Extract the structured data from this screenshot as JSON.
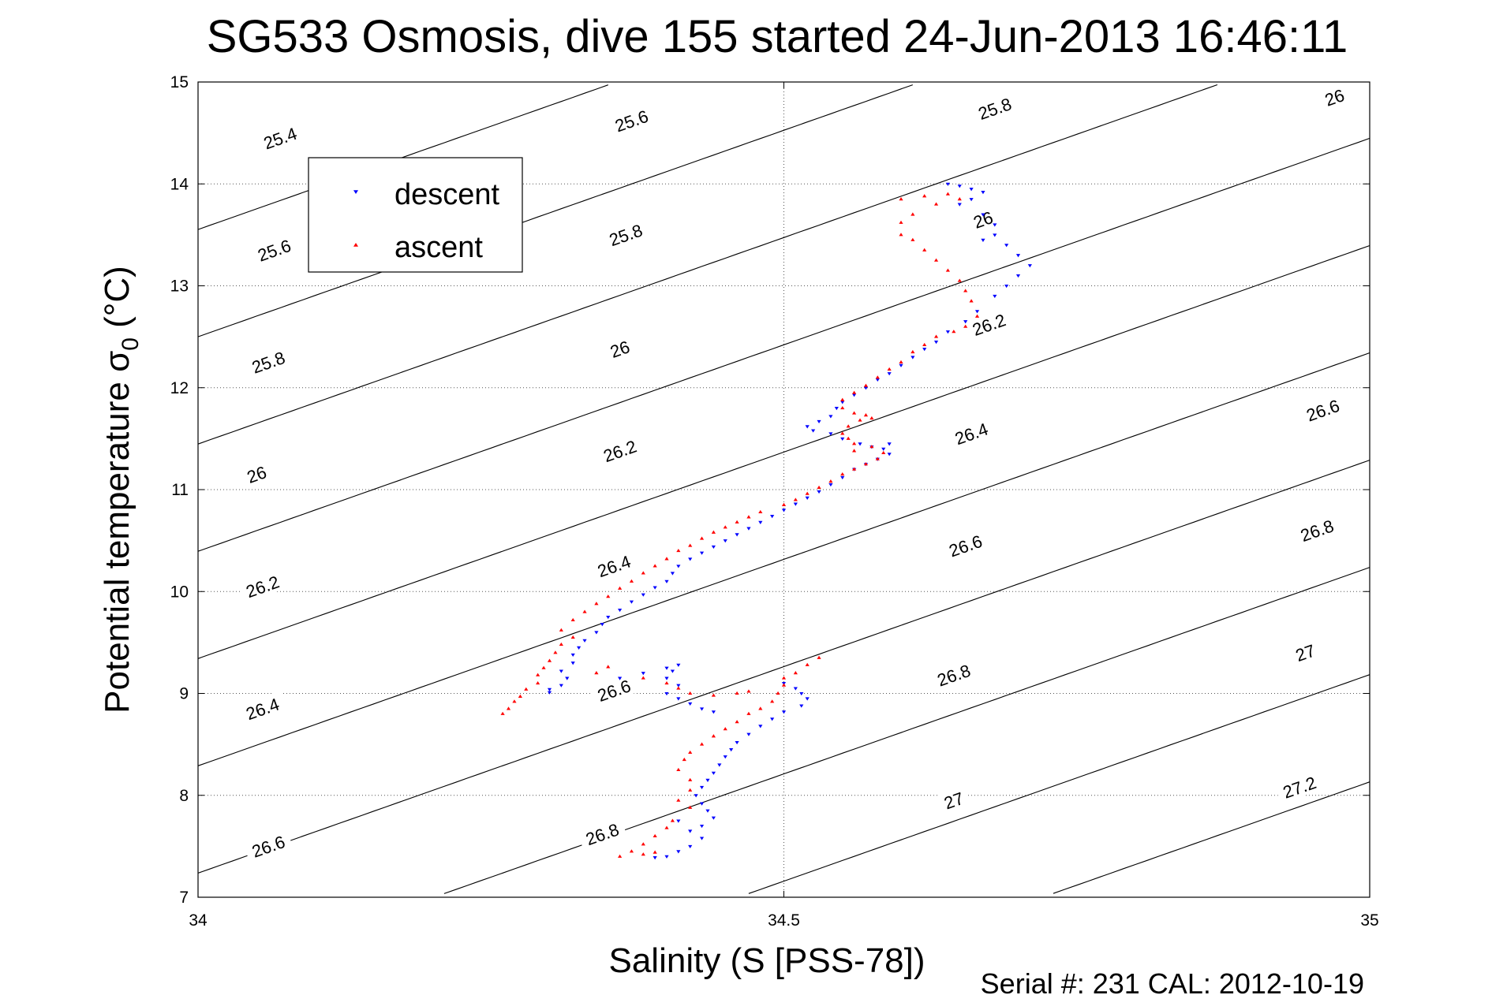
{
  "chart_data": {
    "type": "scatter",
    "title": "SG533 Osmosis, dive 155 started 24-Jun-2013 16:46:11",
    "xlabel": "Salinity (S [PSS-78])",
    "ylabel_main": "Potential temperature σ",
    "ylabel_sub": "0",
    "ylabel_unit": " (°C)",
    "xlim": [
      34,
      35
    ],
    "ylim": [
      7,
      15
    ],
    "x_ticks": [
      {
        "value": 34,
        "label": "34"
      },
      {
        "value": 34.5,
        "label": "34.5"
      },
      {
        "value": 35,
        "label": "35"
      }
    ],
    "y_ticks": [
      {
        "value": 7,
        "label": "7"
      },
      {
        "value": 8,
        "label": "8"
      },
      {
        "value": 9,
        "label": "9"
      },
      {
        "value": 10,
        "label": "10"
      },
      {
        "value": 11,
        "label": "11"
      },
      {
        "value": 12,
        "label": "12"
      },
      {
        "value": 13,
        "label": "13"
      },
      {
        "value": 14,
        "label": "14"
      },
      {
        "value": 15,
        "label": "15"
      }
    ],
    "grid": true,
    "legend_position": "top-left",
    "footer": "Serial #: 231  CAL: 2012-10-19",
    "isopycnals": [
      {
        "level": 25.4,
        "label": "25.4",
        "label_xy": [
          34.07,
          14.45
        ]
      },
      {
        "level": 25.6,
        "label": "25.6",
        "label_xy": [
          34.37,
          14.62
        ]
      },
      {
        "level": 25.6,
        "label": "25.6",
        "label_xy": [
          34.065,
          13.35
        ]
      },
      {
        "level": 25.8,
        "label": "25.8",
        "label_xy": [
          34.68,
          14.74
        ]
      },
      {
        "level": 25.8,
        "label": "25.8",
        "label_xy": [
          34.365,
          13.5
        ]
      },
      {
        "level": 25.8,
        "label": "25.8",
        "label_xy": [
          34.06,
          12.25
        ]
      },
      {
        "level": 26.0,
        "label": "26",
        "label_xy": [
          34.97,
          14.85
        ]
      },
      {
        "level": 26.0,
        "label": "26",
        "label_xy": [
          34.67,
          13.65
        ]
      },
      {
        "level": 26.0,
        "label": "26",
        "label_xy": [
          34.36,
          12.38
        ]
      },
      {
        "level": 26.0,
        "label": "26",
        "label_xy": [
          34.05,
          11.15
        ]
      },
      {
        "level": 26.2,
        "label": "26.2",
        "label_xy": [
          34.675,
          12.62
        ]
      },
      {
        "level": 26.2,
        "label": "26.2",
        "label_xy": [
          34.36,
          11.38
        ]
      },
      {
        "level": 26.2,
        "label": "26.2",
        "label_xy": [
          34.055,
          10.05
        ]
      },
      {
        "level": 26.4,
        "label": "26.4",
        "label_xy": [
          34.66,
          11.55
        ]
      },
      {
        "level": 26.4,
        "label": "26.4",
        "label_xy": [
          34.355,
          10.25
        ]
      },
      {
        "level": 26.4,
        "label": "26.4",
        "label_xy": [
          34.055,
          8.85
        ]
      },
      {
        "level": 26.6,
        "label": "26.6",
        "label_xy": [
          34.96,
          11.78
        ]
      },
      {
        "level": 26.6,
        "label": "26.6",
        "label_xy": [
          34.655,
          10.45
        ]
      },
      {
        "level": 26.6,
        "label": "26.6",
        "label_xy": [
          34.355,
          9.03
        ]
      },
      {
        "level": 26.6,
        "label": "26.6",
        "label_xy": [
          34.06,
          7.5
        ]
      },
      {
        "level": 26.8,
        "label": "26.8",
        "label_xy": [
          34.955,
          10.6
        ]
      },
      {
        "level": 26.8,
        "label": "26.8",
        "label_xy": [
          34.645,
          9.18
        ]
      },
      {
        "level": 26.8,
        "label": "26.8",
        "label_xy": [
          34.345,
          7.62
        ]
      },
      {
        "level": 27.0,
        "label": "27",
        "label_xy": [
          34.945,
          9.4
        ]
      },
      {
        "level": 27.0,
        "label": "27",
        "label_xy": [
          34.645,
          7.95
        ]
      },
      {
        "level": 27.2,
        "label": "27.2",
        "label_xy": [
          34.94,
          8.08
        ]
      }
    ],
    "series": [
      {
        "name": "descent",
        "color": "#0000ff",
        "marker": "triangle-down",
        "points": [
          [
            34.64,
            14.0
          ],
          [
            34.65,
            13.98
          ],
          [
            34.66,
            13.95
          ],
          [
            34.67,
            13.92
          ],
          [
            34.66,
            13.85
          ],
          [
            34.65,
            13.8
          ],
          [
            34.67,
            13.7
          ],
          [
            34.68,
            13.6
          ],
          [
            34.68,
            13.5
          ],
          [
            34.67,
            13.45
          ],
          [
            34.69,
            13.4
          ],
          [
            34.7,
            13.3
          ],
          [
            34.71,
            13.2
          ],
          [
            34.7,
            13.1
          ],
          [
            34.69,
            13.0
          ],
          [
            34.68,
            12.9
          ],
          [
            34.665,
            12.75
          ],
          [
            34.655,
            12.65
          ],
          [
            34.64,
            12.55
          ],
          [
            34.63,
            12.45
          ],
          [
            34.62,
            12.38
          ],
          [
            34.61,
            12.3
          ],
          [
            34.6,
            12.22
          ],
          [
            34.59,
            12.14
          ],
          [
            34.58,
            12.08
          ],
          [
            34.57,
            12.0
          ],
          [
            34.56,
            11.93
          ],
          [
            34.55,
            11.86
          ],
          [
            34.545,
            11.8
          ],
          [
            34.54,
            11.72
          ],
          [
            34.53,
            11.67
          ],
          [
            34.52,
            11.62
          ],
          [
            34.525,
            11.58
          ],
          [
            34.54,
            11.55
          ],
          [
            34.55,
            11.5
          ],
          [
            34.565,
            11.45
          ],
          [
            34.575,
            11.42
          ],
          [
            34.585,
            11.4
          ],
          [
            34.59,
            11.45
          ],
          [
            34.59,
            11.35
          ],
          [
            34.58,
            11.3
          ],
          [
            34.57,
            11.25
          ],
          [
            34.56,
            11.2
          ],
          [
            34.55,
            11.12
          ],
          [
            34.54,
            11.05
          ],
          [
            34.53,
            10.98
          ],
          [
            34.52,
            10.92
          ],
          [
            34.51,
            10.86
          ],
          [
            34.5,
            10.8
          ],
          [
            34.49,
            10.74
          ],
          [
            34.48,
            10.68
          ],
          [
            34.47,
            10.62
          ],
          [
            34.46,
            10.56
          ],
          [
            34.45,
            10.5
          ],
          [
            34.44,
            10.44
          ],
          [
            34.43,
            10.38
          ],
          [
            34.42,
            10.32
          ],
          [
            34.41,
            10.25
          ],
          [
            34.405,
            10.18
          ],
          [
            34.4,
            10.1
          ],
          [
            34.39,
            10.04
          ],
          [
            34.38,
            9.97
          ],
          [
            34.37,
            9.9
          ],
          [
            34.36,
            9.82
          ],
          [
            34.35,
            9.75
          ],
          [
            34.345,
            9.68
          ],
          [
            34.34,
            9.6
          ],
          [
            34.33,
            9.52
          ],
          [
            34.325,
            9.45
          ],
          [
            34.32,
            9.38
          ],
          [
            34.32,
            9.3
          ],
          [
            34.31,
            9.22
          ],
          [
            34.315,
            9.15
          ],
          [
            34.31,
            9.08
          ],
          [
            34.3,
            9.04
          ],
          [
            34.3,
            9.01
          ],
          [
            34.36,
            9.15
          ],
          [
            34.38,
            9.2
          ],
          [
            34.4,
            9.25
          ],
          [
            34.41,
            9.28
          ],
          [
            34.405,
            9.22
          ],
          [
            34.4,
            9.15
          ],
          [
            34.41,
            9.08
          ],
          [
            34.4,
            9.0
          ],
          [
            34.41,
            8.95
          ],
          [
            34.42,
            8.9
          ],
          [
            34.43,
            8.85
          ],
          [
            34.44,
            8.82
          ],
          [
            34.5,
            9.1
          ],
          [
            34.51,
            9.05
          ],
          [
            34.515,
            9.0
          ],
          [
            34.52,
            8.95
          ],
          [
            34.515,
            8.88
          ],
          [
            34.5,
            8.82
          ],
          [
            34.49,
            8.75
          ],
          [
            34.48,
            8.68
          ],
          [
            34.47,
            8.6
          ],
          [
            34.46,
            8.52
          ],
          [
            34.455,
            8.45
          ],
          [
            34.45,
            8.38
          ],
          [
            34.445,
            8.3
          ],
          [
            34.44,
            8.22
          ],
          [
            34.435,
            8.15
          ],
          [
            34.43,
            8.08
          ],
          [
            34.425,
            8.0
          ],
          [
            34.43,
            7.92
          ],
          [
            34.435,
            7.85
          ],
          [
            34.44,
            7.78
          ],
          [
            34.43,
            7.7
          ],
          [
            34.41,
            7.75
          ],
          [
            34.42,
            7.65
          ],
          [
            34.43,
            7.58
          ],
          [
            34.42,
            7.5
          ],
          [
            34.41,
            7.45
          ],
          [
            34.4,
            7.4
          ],
          [
            34.39,
            7.39
          ]
        ]
      },
      {
        "name": "ascent",
        "color": "#ff0000",
        "marker": "triangle-up",
        "points": [
          [
            34.6,
            13.85
          ],
          [
            34.62,
            13.88
          ],
          [
            34.64,
            13.9
          ],
          [
            34.65,
            13.85
          ],
          [
            34.63,
            13.8
          ],
          [
            34.61,
            13.7
          ],
          [
            34.6,
            13.62
          ],
          [
            34.6,
            13.5
          ],
          [
            34.61,
            13.45
          ],
          [
            34.62,
            13.35
          ],
          [
            34.63,
            13.25
          ],
          [
            34.64,
            13.15
          ],
          [
            34.65,
            13.05
          ],
          [
            34.655,
            12.95
          ],
          [
            34.66,
            12.85
          ],
          [
            34.665,
            12.7
          ],
          [
            34.655,
            12.6
          ],
          [
            34.645,
            12.55
          ],
          [
            34.63,
            12.5
          ],
          [
            34.62,
            12.42
          ],
          [
            34.61,
            12.35
          ],
          [
            34.6,
            12.25
          ],
          [
            34.59,
            12.18
          ],
          [
            34.58,
            12.1
          ],
          [
            34.57,
            12.02
          ],
          [
            34.56,
            11.95
          ],
          [
            34.55,
            11.88
          ],
          [
            34.55,
            11.8
          ],
          [
            34.56,
            11.75
          ],
          [
            34.57,
            11.73
          ],
          [
            34.575,
            11.7
          ],
          [
            34.565,
            11.68
          ],
          [
            34.555,
            11.62
          ],
          [
            34.55,
            11.55
          ],
          [
            34.555,
            11.5
          ],
          [
            34.56,
            11.45
          ],
          [
            34.56,
            11.38
          ],
          [
            34.575,
            11.42
          ],
          [
            34.585,
            11.36
          ],
          [
            34.58,
            11.3
          ],
          [
            34.57,
            11.25
          ],
          [
            34.56,
            11.2
          ],
          [
            34.55,
            11.15
          ],
          [
            34.54,
            11.08
          ],
          [
            34.53,
            11.02
          ],
          [
            34.52,
            10.96
          ],
          [
            34.51,
            10.9
          ],
          [
            34.5,
            10.85
          ],
          [
            34.48,
            10.78
          ],
          [
            34.47,
            10.73
          ],
          [
            34.46,
            10.68
          ],
          [
            34.45,
            10.63
          ],
          [
            34.44,
            10.58
          ],
          [
            34.43,
            10.52
          ],
          [
            34.42,
            10.45
          ],
          [
            34.41,
            10.4
          ],
          [
            34.4,
            10.32
          ],
          [
            34.39,
            10.25
          ],
          [
            34.38,
            10.18
          ],
          [
            34.37,
            10.1
          ],
          [
            34.36,
            10.03
          ],
          [
            34.35,
            9.95
          ],
          [
            34.34,
            9.88
          ],
          [
            34.33,
            9.8
          ],
          [
            34.32,
            9.72
          ],
          [
            34.31,
            9.62
          ],
          [
            34.32,
            9.55
          ],
          [
            34.31,
            9.48
          ],
          [
            34.305,
            9.4
          ],
          [
            34.3,
            9.32
          ],
          [
            34.295,
            9.25
          ],
          [
            34.29,
            9.18
          ],
          [
            34.29,
            9.1
          ],
          [
            34.28,
            9.04
          ],
          [
            34.275,
            8.97
          ],
          [
            34.27,
            8.92
          ],
          [
            34.265,
            8.85
          ],
          [
            34.26,
            8.8
          ],
          [
            34.35,
            9.26
          ],
          [
            34.34,
            9.2
          ],
          [
            34.38,
            9.15
          ],
          [
            34.4,
            9.1
          ],
          [
            34.41,
            9.05
          ],
          [
            34.42,
            9.0
          ],
          [
            34.44,
            8.98
          ],
          [
            34.46,
            9.0
          ],
          [
            34.47,
            9.02
          ],
          [
            34.53,
            9.35
          ],
          [
            34.52,
            9.28
          ],
          [
            34.51,
            9.2
          ],
          [
            34.5,
            9.15
          ],
          [
            34.5,
            9.08
          ],
          [
            34.495,
            9.0
          ],
          [
            34.49,
            8.92
          ],
          [
            34.48,
            8.85
          ],
          [
            34.47,
            8.8
          ],
          [
            34.46,
            8.72
          ],
          [
            34.45,
            8.65
          ],
          [
            34.44,
            8.58
          ],
          [
            34.43,
            8.5
          ],
          [
            34.42,
            8.42
          ],
          [
            34.415,
            8.35
          ],
          [
            34.41,
            8.25
          ],
          [
            34.42,
            8.15
          ],
          [
            34.42,
            8.05
          ],
          [
            34.41,
            7.95
          ],
          [
            34.42,
            7.88
          ],
          [
            34.405,
            7.75
          ],
          [
            34.4,
            7.68
          ],
          [
            34.39,
            7.6
          ],
          [
            34.38,
            7.52
          ],
          [
            34.37,
            7.45
          ],
          [
            34.36,
            7.4
          ],
          [
            34.38,
            7.42
          ],
          [
            34.39,
            7.44
          ]
        ]
      }
    ]
  }
}
